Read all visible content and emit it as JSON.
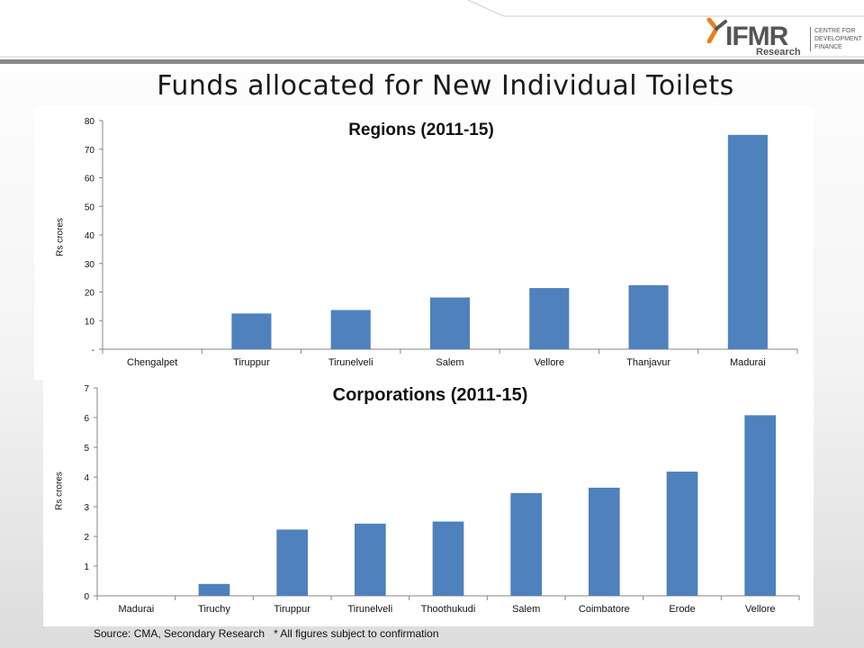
{
  "header": {
    "title": "Funds allocated for New Individual Toilets",
    "logo": {
      "text": "IFMR",
      "subtext": "Research",
      "tagline": "CENTRE FOR DEVELOPMENT FINANCE",
      "accent_color": "#e8801e",
      "text_color": "#555555"
    },
    "band_color": "#8a8a8a"
  },
  "footer": {
    "text": "Source: CMA, Secondary Research   * All figures subject to confirmation"
  },
  "chart_data": [
    {
      "type": "bar",
      "title": "Regions (2011-15)",
      "xlabel": "",
      "ylabel": "Rs crores",
      "ylim": [
        0,
        80
      ],
      "yticks": [
        0,
        10,
        20,
        30,
        40,
        50,
        60,
        70,
        80
      ],
      "ytick_labels": [
        "-",
        "10",
        "20",
        "30",
        "40",
        "50",
        "60",
        "70",
        "80"
      ],
      "categories": [
        "Chengalpet",
        "Tiruppur",
        "Tirunelveli",
        "Salem",
        "Vellore",
        "Thanjavur",
        "Madurai"
      ],
      "values": [
        0,
        12.5,
        13.7,
        18.1,
        21.4,
        22.4,
        75
      ],
      "bar_color": "#4f81bd",
      "grid": false,
      "legend": "none"
    },
    {
      "type": "bar",
      "title": "Corporations (2011-15)",
      "xlabel": "",
      "ylabel": "Rs crores",
      "ylim": [
        0,
        7
      ],
      "yticks": [
        0,
        1,
        2,
        3,
        4,
        5,
        6,
        7
      ],
      "ytick_labels": [
        "0",
        "1",
        "2",
        "3",
        "4",
        "5",
        "6",
        "7"
      ],
      "categories": [
        "Madurai",
        "Tiruchy",
        "Tiruppur",
        "Tirunelveli",
        "Thoothukudi",
        "Salem",
        "Coimbatore",
        "Erode",
        "Vellore"
      ],
      "values": [
        0,
        0.4,
        2.23,
        2.43,
        2.5,
        3.46,
        3.64,
        4.18,
        6.08
      ],
      "bar_color": "#4f81bd",
      "grid": false,
      "legend": "none"
    }
  ]
}
